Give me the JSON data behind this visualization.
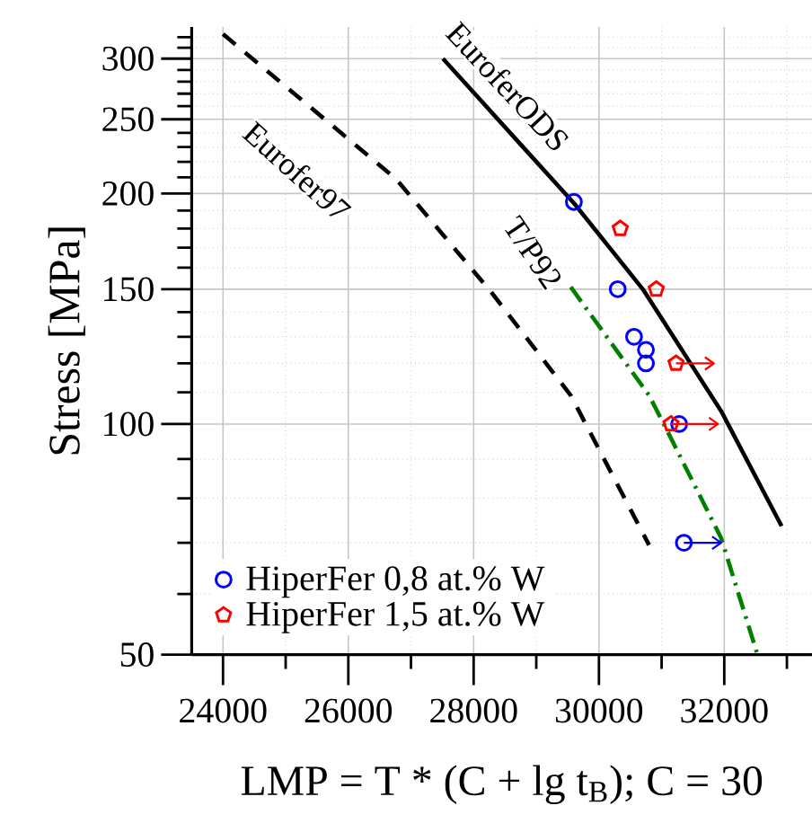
{
  "chart_data": {
    "type": "scatter",
    "xlabel": "LMP = T * (C + lg t$_{B}$); C = 30",
    "ylabel": "Stress [MPa]",
    "log": "y",
    "grid": true,
    "legend": "bottom left",
    "xlim": [
      23500,
      33400
    ],
    "ylim": [
      50,
      330
    ],
    "xticks": [
      24000,
      {
        "value": 25000,
        "label": null
      },
      26000,
      {
        "value": 27000,
        "label": null
      },
      28000,
      {
        "value": 29000,
        "label": null
      },
      30000,
      {
        "value": 31000,
        "label": null
      },
      32000,
      {
        "value": 33000,
        "label": null
      }
    ],
    "yticks": [
      50,
      {
        "value": 60,
        "label": null
      },
      {
        "value": 70,
        "label": null
      },
      {
        "value": 80,
        "label": null
      },
      {
        "value": 90,
        "label": null
      },
      100,
      {
        "value": 110,
        "label": null
      },
      {
        "value": 120,
        "label": null
      },
      {
        "value": 130,
        "label": null
      },
      {
        "value": 140,
        "label": null
      },
      150,
      {
        "value": 160,
        "label": null
      },
      {
        "value": 170,
        "label": null
      },
      {
        "value": 180,
        "label": null
      },
      {
        "value": 190,
        "label": null
      },
      200,
      {
        "value": 210,
        "label": null
      },
      {
        "value": 220,
        "label": null
      },
      {
        "value": 230,
        "label": null
      },
      {
        "value": 240,
        "label": null
      },
      250,
      {
        "value": 260,
        "label": null
      },
      {
        "value": 270,
        "label": null
      },
      {
        "value": 280,
        "label": null
      },
      {
        "value": 290,
        "label": null
      },
      300,
      {
        "value": 310,
        "label": null
      },
      {
        "value": 320,
        "label": null
      }
    ],
    "series": [
      {
        "name": "Eurofer97",
        "type": "line",
        "line_style": "dashed",
        "color": "#000000",
        "x": [
          24000,
          26760,
          28300,
          29550,
          30800
        ],
        "values": [
          323,
          209,
          148,
          109,
          69.5
        ]
      },
      {
        "name": "EuroferODS",
        "type": "line",
        "line_style": "solid",
        "color": "#000000",
        "x": [
          27510,
          28830,
          29608,
          30700,
          31950,
          32915
        ],
        "values": [
          300,
          228,
          194,
          150,
          104,
          73.6
        ]
      },
      {
        "name": "T/P92",
        "type": "line",
        "line_style": "dashdot",
        "color": "#008000",
        "x": [
          29550,
          30800,
          31090,
          31950,
          32530
        ],
        "values": [
          151,
          109,
          98,
          71,
          50
        ]
      },
      {
        "name": "HiperFer 0,8 at.% W",
        "type": "scatter",
        "marker": "circle",
        "color": "#0000ff",
        "x": [
          29600,
          30300,
          30560,
          30750,
          30750,
          31280,
          31355
        ],
        "values": [
          195,
          150,
          130,
          125,
          120,
          100,
          70
        ],
        "xerrors": [
          null,
          null,
          null,
          null,
          null,
          null,
          [
            31355,
            31950
          ]
        ]
      },
      {
        "name": "HiperFer 1,5 at.% W",
        "type": "scatter",
        "color": "#ff0000",
        "x": [
          30340,
          30915,
          31230,
          31150
        ],
        "values": [
          180,
          150,
          120,
          100
        ],
        "xerrors": [
          null,
          null,
          [
            31230,
            31835
          ],
          [
            31150,
            31900
          ]
        ]
      }
    ]
  }
}
